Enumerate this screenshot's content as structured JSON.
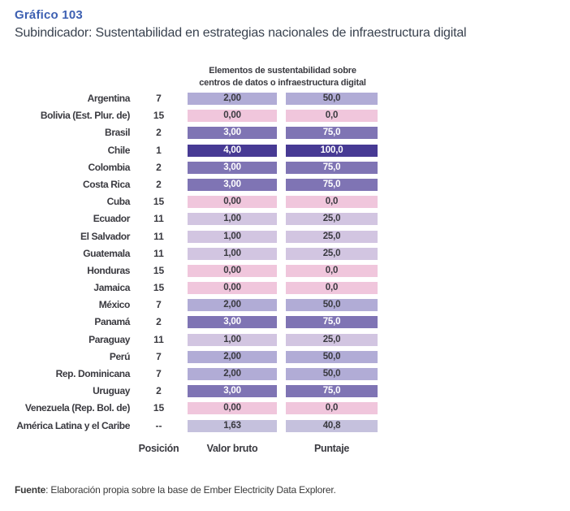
{
  "title": "Gráfico 103",
  "subtitle": "Subindicador: Sustentabilidad en estrategias nacionales de infraestructura digital",
  "colors": {
    "title": "#3d60b2",
    "subtitle": "#39424f",
    "text_dark": "#3a3a40"
  },
  "chart_data": {
    "type": "table",
    "group_header_line1": "Elementos de sustentabilidad sobre",
    "group_header_line2": "centros de datos o infraestructura digital",
    "columns": [
      "Posición",
      "Valor bruto",
      "Puntaje"
    ],
    "value_scale": {
      "min": 0,
      "max": 4,
      "puntaje_min": 0,
      "puntaje_max": 100
    },
    "cell_colors": {
      "v0": {
        "bg": "#f0c6dc",
        "fg": "#3a3a40"
      },
      "v1": {
        "bg": "#d2c5e1",
        "fg": "#3a3a40"
      },
      "avg": {
        "bg": "#c5c1dd",
        "fg": "#3a3a40"
      },
      "v2": {
        "bg": "#b1acd6",
        "fg": "#3a3a40"
      },
      "v3": {
        "bg": "#7f74b4",
        "fg": "#ffffff"
      },
      "v4": {
        "bg": "#473a94",
        "fg": "#ffffff"
      }
    },
    "rows": [
      {
        "country": "Argentina",
        "posicion": "7",
        "valor_bruto": "2,00",
        "puntaje": "50,0",
        "level": "v2"
      },
      {
        "country": "Bolivia (Est. Plur. de)",
        "posicion": "15",
        "valor_bruto": "0,00",
        "puntaje": "0,0",
        "level": "v0"
      },
      {
        "country": "Brasil",
        "posicion": "2",
        "valor_bruto": "3,00",
        "puntaje": "75,0",
        "level": "v3"
      },
      {
        "country": "Chile",
        "posicion": "1",
        "valor_bruto": "4,00",
        "puntaje": "100,0",
        "level": "v4"
      },
      {
        "country": "Colombia",
        "posicion": "2",
        "valor_bruto": "3,00",
        "puntaje": "75,0",
        "level": "v3"
      },
      {
        "country": "Costa Rica",
        "posicion": "2",
        "valor_bruto": "3,00",
        "puntaje": "75,0",
        "level": "v3"
      },
      {
        "country": "Cuba",
        "posicion": "15",
        "valor_bruto": "0,00",
        "puntaje": "0,0",
        "level": "v0"
      },
      {
        "country": "Ecuador",
        "posicion": "11",
        "valor_bruto": "1,00",
        "puntaje": "25,0",
        "level": "v1"
      },
      {
        "country": "El Salvador",
        "posicion": "11",
        "valor_bruto": "1,00",
        "puntaje": "25,0",
        "level": "v1"
      },
      {
        "country": "Guatemala",
        "posicion": "11",
        "valor_bruto": "1,00",
        "puntaje": "25,0",
        "level": "v1"
      },
      {
        "country": "Honduras",
        "posicion": "15",
        "valor_bruto": "0,00",
        "puntaje": "0,0",
        "level": "v0"
      },
      {
        "country": "Jamaica",
        "posicion": "15",
        "valor_bruto": "0,00",
        "puntaje": "0,0",
        "level": "v0"
      },
      {
        "country": "México",
        "posicion": "7",
        "valor_bruto": "2,00",
        "puntaje": "50,0",
        "level": "v2"
      },
      {
        "country": "Panamá",
        "posicion": "2",
        "valor_bruto": "3,00",
        "puntaje": "75,0",
        "level": "v3"
      },
      {
        "country": "Paraguay",
        "posicion": "11",
        "valor_bruto": "1,00",
        "puntaje": "25,0",
        "level": "v1"
      },
      {
        "country": "Perú",
        "posicion": "7",
        "valor_bruto": "2,00",
        "puntaje": "50,0",
        "level": "v2"
      },
      {
        "country": "Rep. Dominicana",
        "posicion": "7",
        "valor_bruto": "2,00",
        "puntaje": "50,0",
        "level": "v2"
      },
      {
        "country": "Uruguay",
        "posicion": "2",
        "valor_bruto": "3,00",
        "puntaje": "75,0",
        "level": "v3"
      },
      {
        "country": "Venezuela (Rep. Bol. de)",
        "posicion": "15",
        "valor_bruto": "0,00",
        "puntaje": "0,0",
        "level": "v0"
      },
      {
        "country": "América Latina y el Caribe",
        "posicion": "--",
        "valor_bruto": "1,63",
        "puntaje": "40,8",
        "level": "avg"
      }
    ]
  },
  "footer": {
    "label": "Fuente",
    "text": ": Elaboración propia sobre la base de Ember Electricity Data Explorer."
  }
}
